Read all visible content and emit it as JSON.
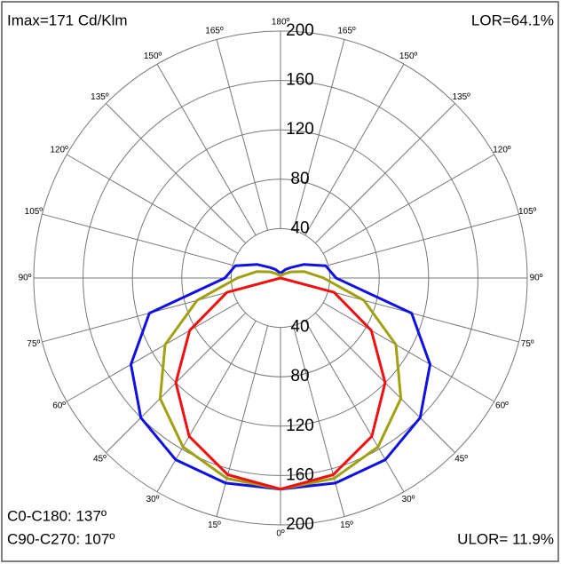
{
  "chart_data": {
    "type": "polar",
    "notes": {
      "imax": "Imax=171 Cd/Klm",
      "lor": "LOR=64.1%",
      "c0": "C0-C180:  137º",
      "c90": "C90-C270: 107º",
      "ulor": "ULOR= 11.9%"
    },
    "angles": [
      0,
      15,
      30,
      45,
      60,
      75,
      90,
      105,
      120,
      135,
      150,
      165,
      180
    ],
    "angle_ticks": [
      {
        "value": 0,
        "label": "0º"
      },
      {
        "value": 15,
        "label": "15º"
      },
      {
        "value": 30,
        "label": "30º"
      },
      {
        "value": 45,
        "label": "45º"
      },
      {
        "value": 60,
        "label": "60º"
      },
      {
        "value": 75,
        "label": "75º"
      },
      {
        "value": 90,
        "label": "90º"
      },
      {
        "value": 105,
        "label": "105º"
      },
      {
        "value": 120,
        "label": "120º"
      },
      {
        "value": 135,
        "label": "135º"
      },
      {
        "value": 150,
        "label": "150º"
      },
      {
        "value": 165,
        "label": "165º"
      },
      {
        "value": 180,
        "label": "180º"
      }
    ],
    "rlim": [
      0,
      200
    ],
    "rticks": [
      40,
      80,
      120,
      160,
      200
    ],
    "series": [
      {
        "color": "#1010e0",
        "values": [
          171,
          172,
          170,
          160,
          140,
          110,
          45,
          38,
          22,
          12,
          8,
          5,
          4
        ]
      },
      {
        "color": "#a0a010",
        "values": [
          171,
          168,
          158,
          138,
          108,
          70,
          35,
          20,
          10,
          5,
          3,
          2,
          2
        ]
      },
      {
        "color": "#f01010",
        "values": [
          171,
          165,
          148,
          120,
          85,
          45,
          0,
          0,
          0,
          0,
          0,
          0,
          0
        ]
      }
    ]
  }
}
